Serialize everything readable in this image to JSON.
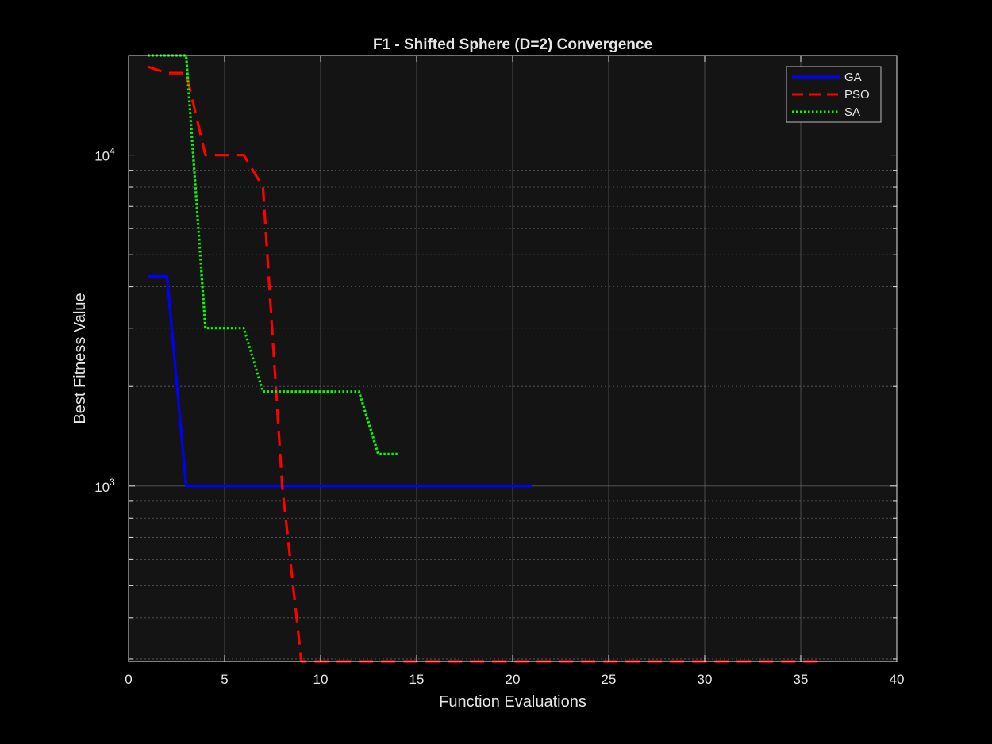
{
  "colors": {
    "figure_bg": "#000000",
    "axes_bg": "#141414",
    "grid": "#7a7a7a",
    "minor_grid": "#5a5a5a",
    "text": "#e6e6e6",
    "ga": "#0000ff",
    "pso": "#ff0000",
    "sa": "#00ff00"
  },
  "chart_data": {
    "type": "line",
    "title": "F1 - Shifted Sphere (D=2) Convergence",
    "xlabel": "Function Evaluations",
    "ylabel": "Best Fitness Value",
    "xlim": [
      0,
      40
    ],
    "ylim": [
      295,
      20000
    ],
    "yscale": "log",
    "grid": true,
    "minor_grid": true,
    "legend_location": "top-right",
    "x_ticks": [
      0,
      5,
      10,
      15,
      20,
      25,
      30,
      35,
      40
    ],
    "x_tick_labels": [
      "0",
      "5",
      "10",
      "15",
      "20",
      "25",
      "30",
      "35",
      "40"
    ],
    "y_ticks": [
      1000,
      10000
    ],
    "y_tick_labels": [
      {
        "base": "10",
        "exp": "3"
      },
      {
        "base": "10",
        "exp": "4"
      }
    ],
    "series": [
      {
        "name": "GA",
        "color": "#0000ff",
        "style": "solid",
        "x": [
          1,
          2,
          3,
          4,
          5,
          6,
          7,
          8,
          9,
          10,
          11,
          12,
          13,
          14,
          15,
          16,
          17,
          18,
          19,
          20,
          21
        ],
        "y": [
          4300,
          4300,
          1000,
          1000,
          1000,
          1000,
          1000,
          1000,
          1000,
          1000,
          1000,
          1000,
          1000,
          1000,
          1000,
          1000,
          1000,
          1000,
          1000,
          1000,
          1000
        ]
      },
      {
        "name": "PSO",
        "color": "#ff0000",
        "style": "dashed",
        "x": [
          1,
          2,
          3,
          4,
          5,
          6,
          7,
          8,
          9,
          10,
          11,
          12,
          13,
          14,
          15,
          16,
          17,
          18,
          19,
          20,
          21,
          22,
          23,
          24,
          25,
          26,
          27,
          28,
          29,
          30,
          31,
          32,
          33,
          34,
          35,
          36
        ],
        "y": [
          18500,
          17700,
          17700,
          10000,
          10000,
          10000,
          8000,
          1000,
          295,
          295,
          295,
          295,
          295,
          295,
          295,
          295,
          295,
          295,
          295,
          295,
          295,
          295,
          295,
          295,
          295,
          295,
          295,
          295,
          295,
          295,
          295,
          295,
          295,
          295,
          295,
          295
        ]
      },
      {
        "name": "SA",
        "color": "#00ff00",
        "style": "dotted",
        "x": [
          1,
          2,
          3,
          4,
          5,
          6,
          7,
          8,
          9,
          10,
          11,
          12,
          13,
          14
        ],
        "y": [
          20000,
          20000,
          20000,
          3000,
          3000,
          3000,
          1930,
          1930,
          1930,
          1930,
          1930,
          1930,
          1250,
          1250
        ]
      }
    ]
  }
}
